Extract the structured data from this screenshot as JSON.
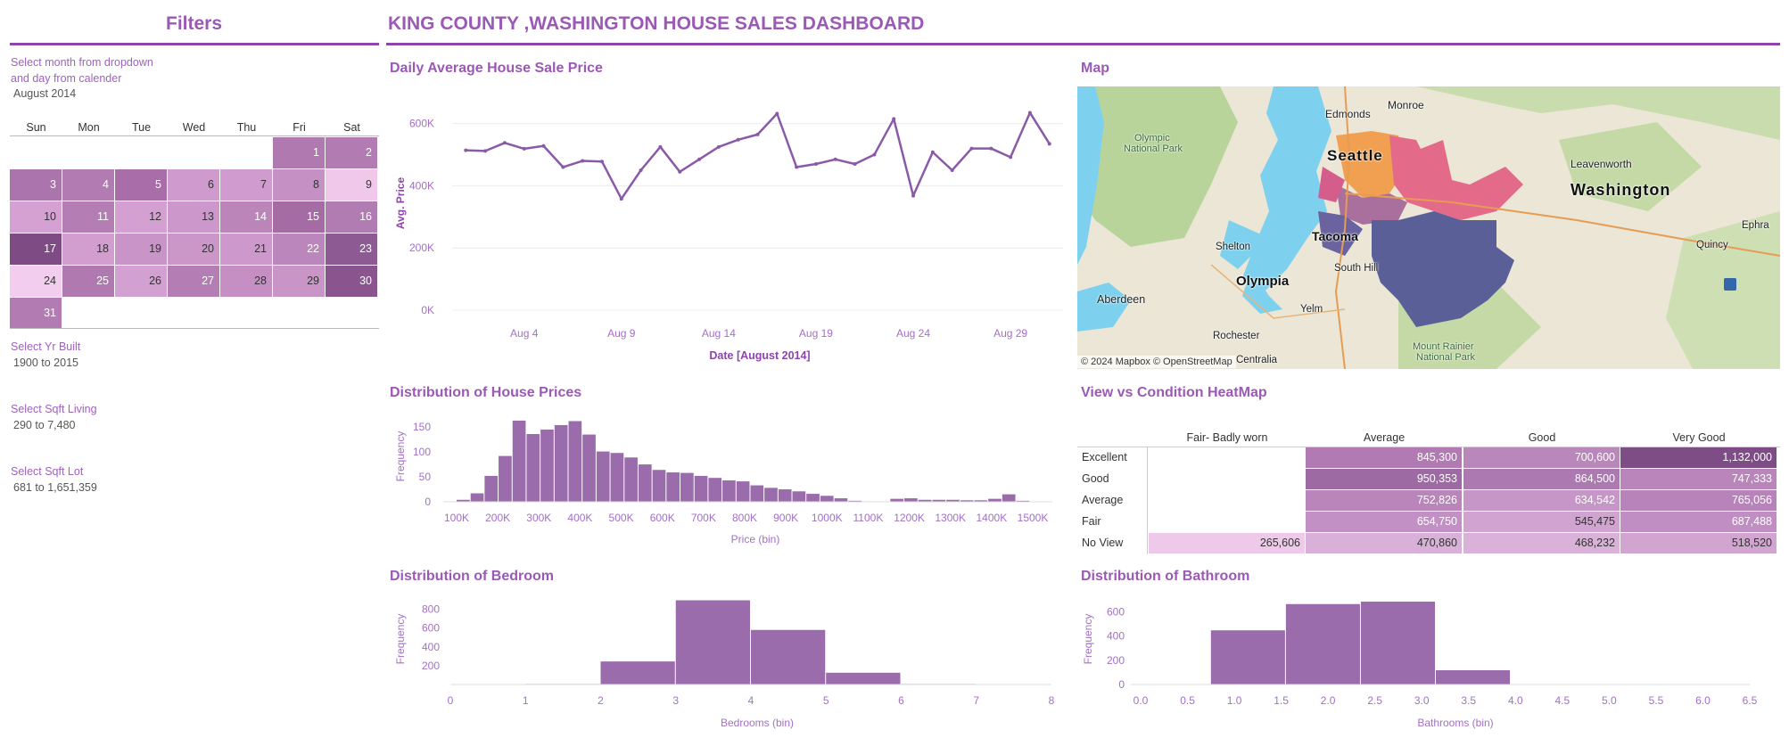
{
  "header": {
    "filters_title": "Filters",
    "dashboard_title": "KING COUNTY ,WASHINGTON HOUSE SALES DASHBOARD"
  },
  "filters": {
    "month_label_1": "Select month from dropdown",
    "month_label_2": "and day from calender",
    "month_value": "August 2014",
    "calendar": {
      "days": [
        "Sun",
        "Mon",
        "Tue",
        "Wed",
        "Thu",
        "Fri",
        "Sat"
      ],
      "first_weekday": 5,
      "cells": [
        {
          "d": "1",
          "c": "#b07ab0"
        },
        {
          "d": "2",
          "c": "#b27cb2"
        },
        {
          "d": "3",
          "c": "#ac74ac"
        },
        {
          "d": "4",
          "c": "#b27bb2"
        },
        {
          "d": "5",
          "c": "#a96ea9"
        },
        {
          "d": "6",
          "c": "#cf9acd"
        },
        {
          "d": "7",
          "c": "#d09bce"
        },
        {
          "d": "8",
          "c": "#c590c4"
        },
        {
          "d": "9",
          "c": "#efc8ea"
        },
        {
          "d": "10",
          "c": "#d4a1d2"
        },
        {
          "d": "11",
          "c": "#b47eb4"
        },
        {
          "d": "12",
          "c": "#d3a0d1"
        },
        {
          "d": "13",
          "c": "#cc97ca"
        },
        {
          "d": "14",
          "c": "#bb85ba"
        },
        {
          "d": "15",
          "c": "#a46ba5"
        },
        {
          "d": "16",
          "c": "#b17cb1"
        },
        {
          "d": "17",
          "c": "#7e4b84"
        },
        {
          "d": "18",
          "c": "#d19ecf"
        },
        {
          "d": "19",
          "c": "#c995c8"
        },
        {
          "d": "20",
          "c": "#cb97c9"
        },
        {
          "d": "21",
          "c": "#cd98cb"
        },
        {
          "d": "22",
          "c": "#bb86bb"
        },
        {
          "d": "23",
          "c": "#8d5a93"
        },
        {
          "d": "24",
          "c": "#f2cdee"
        },
        {
          "d": "25",
          "c": "#b07ab0"
        },
        {
          "d": "26",
          "c": "#d3a1d1"
        },
        {
          "d": "27",
          "c": "#b47db4"
        },
        {
          "d": "28",
          "c": "#c58fc3"
        },
        {
          "d": "29",
          "c": "#c995c7"
        },
        {
          "d": "30",
          "c": "#8a558f"
        },
        {
          "d": "31",
          "c": "#b27bb2"
        }
      ]
    },
    "yr_built_label": "Select Yr Built",
    "yr_built_value": "1900 to 2015",
    "sqft_living_label": "Select Sqft Living",
    "sqft_living_value": "290 to 7,480",
    "sqft_lot_label": "Select Sqft Lot",
    "sqft_lot_value": "681 to 1,651,359"
  },
  "sections": {
    "line_title": "Daily  Average House Sale Price",
    "map_title": "Map",
    "price_hist_title": "Distribution of House Prices",
    "heatmap_title": "View vs Condition HeatMap",
    "bedroom_title": "Distribution of Bedroom",
    "bathroom_title": "Distribution of Bathroom"
  },
  "map": {
    "labels": [
      "Monroe",
      "Edmonds",
      "Olympic",
      "National Park",
      "Leavenworth",
      "Washington",
      "Ephra",
      "Seattle",
      "Quincy",
      "Shelton",
      "Tacoma",
      "South Hill",
      "Olympia",
      "Aberdeen",
      "Yelm",
      "Rochester",
      "Mount Rainier",
      "National Park",
      "Centralia"
    ],
    "attribution": "© 2024 Mapbox © OpenStreetMap"
  },
  "chart_data": [
    {
      "type": "line",
      "title": "Daily  Average House Sale Price",
      "xlabel": "Date [August 2014]",
      "ylabel": "Avg. Price",
      "x": [
        1,
        2,
        3,
        4,
        5,
        6,
        7,
        8,
        9,
        10,
        11,
        12,
        13,
        14,
        15,
        16,
        17,
        18,
        19,
        20,
        21,
        22,
        23,
        24,
        25,
        26,
        27,
        28,
        29,
        30,
        31
      ],
      "values": [
        514000,
        512000,
        538000,
        519000,
        528000,
        460000,
        480000,
        478000,
        358000,
        450000,
        525000,
        445000,
        485000,
        525000,
        548000,
        565000,
        632000,
        460000,
        470000,
        485000,
        470000,
        500000,
        615000,
        368000,
        508000,
        450000,
        520000,
        520000,
        492000,
        635000,
        535000
      ],
      "ylim": [
        0,
        640000
      ],
      "yticks": [
        "0K",
        "200K",
        "400K",
        "600K"
      ],
      "xticks": [
        "Aug 4",
        "Aug 9",
        "Aug 14",
        "Aug 19",
        "Aug 24",
        "Aug 29"
      ],
      "color": "#8a5aa8"
    },
    {
      "type": "bar",
      "title": "Distribution of House Prices",
      "xlabel": "Price (bin)",
      "ylabel": "Frequency",
      "bin_start": 100000,
      "bin_width": 34000,
      "values": [
        4,
        17,
        52,
        92,
        163,
        136,
        145,
        154,
        162,
        135,
        101,
        98,
        89,
        75,
        64,
        59,
        58,
        52,
        48,
        43,
        41,
        33,
        28,
        25,
        21,
        16,
        12,
        7,
        2,
        0,
        0,
        6,
        7,
        4,
        4,
        4,
        3,
        3,
        6,
        15,
        2,
        0
      ],
      "ylim": [
        0,
        170
      ],
      "yticks": [
        "0",
        "50",
        "100",
        "150"
      ],
      "xticks": [
        "100K",
        "200K",
        "300K",
        "400K",
        "500K",
        "600K",
        "700K",
        "800K",
        "900K",
        "1000K",
        "1100K",
        "1200K",
        "1300K",
        "1400K",
        "1500K"
      ],
      "color": "#9a6cab"
    },
    {
      "type": "heatmap",
      "title": "View vs Condition HeatMap",
      "columns": [
        "Fair- Badly worn",
        "Average",
        "Good",
        "Very Good"
      ],
      "rows": [
        "Excellent",
        "Good",
        "Average",
        "Fair",
        "No View"
      ],
      "values": [
        [
          "",
          "845,300",
          "700,600",
          "1,132,000"
        ],
        [
          "",
          "950,353",
          "864,500",
          "747,333"
        ],
        [
          "",
          "752,826",
          "634,542",
          "765,056"
        ],
        [
          "",
          "654,750",
          "545,475",
          "687,488"
        ],
        [
          "265,606",
          "470,860",
          "468,232",
          "518,520"
        ]
      ],
      "colors": [
        [
          "",
          "#b27ab3",
          "#ba87bb",
          "#7f4d86"
        ],
        [
          "",
          "#9d6aa4",
          "#ad79b1",
          "#b985bb"
        ],
        [
          "",
          "#b985bb",
          "#c796c8",
          "#b883ba"
        ],
        [
          "",
          "#c390c6",
          "#d1a3d0",
          "#c18ec3"
        ],
        [
          "#efc9ea",
          "#d9b1d8",
          "#dab1d8",
          "#d2a5d0"
        ]
      ]
    },
    {
      "type": "bar",
      "title": "Distribution of Bedroom",
      "xlabel": "Bedrooms (bin)",
      "ylabel": "Frequency",
      "bins": [
        [
          1,
          2,
          6
        ],
        [
          2,
          3,
          245
        ],
        [
          3,
          4,
          895
        ],
        [
          4,
          5,
          580
        ],
        [
          5,
          6,
          125
        ],
        [
          6,
          7,
          6
        ]
      ],
      "xlim": [
        0,
        8
      ],
      "ylim": [
        0,
        900
      ],
      "yticks": [
        "200",
        "400",
        "600",
        "800"
      ],
      "xticks": [
        "0",
        "1",
        "2",
        "3",
        "4",
        "5",
        "6",
        "7",
        "8"
      ],
      "color": "#9a6cab"
    },
    {
      "type": "bar",
      "title": "Distribution of Bathroom",
      "xlabel": "Bathrooms (bin)",
      "ylabel": "Frequency",
      "bins": [
        [
          0.75,
          1.55,
          448
        ],
        [
          1.55,
          2.35,
          665
        ],
        [
          2.35,
          3.15,
          685
        ],
        [
          3.15,
          3.95,
          118
        ]
      ],
      "xlim": [
        0,
        6.5
      ],
      "ylim": [
        0,
        700
      ],
      "yticks": [
        "0",
        "200",
        "400",
        "600"
      ],
      "xticks": [
        "0.0",
        "0.5",
        "1.0",
        "1.5",
        "2.0",
        "2.5",
        "3.0",
        "3.5",
        "4.0",
        "4.5",
        "5.0",
        "5.5",
        "6.0",
        "6.5"
      ],
      "color": "#9a6cab"
    }
  ]
}
